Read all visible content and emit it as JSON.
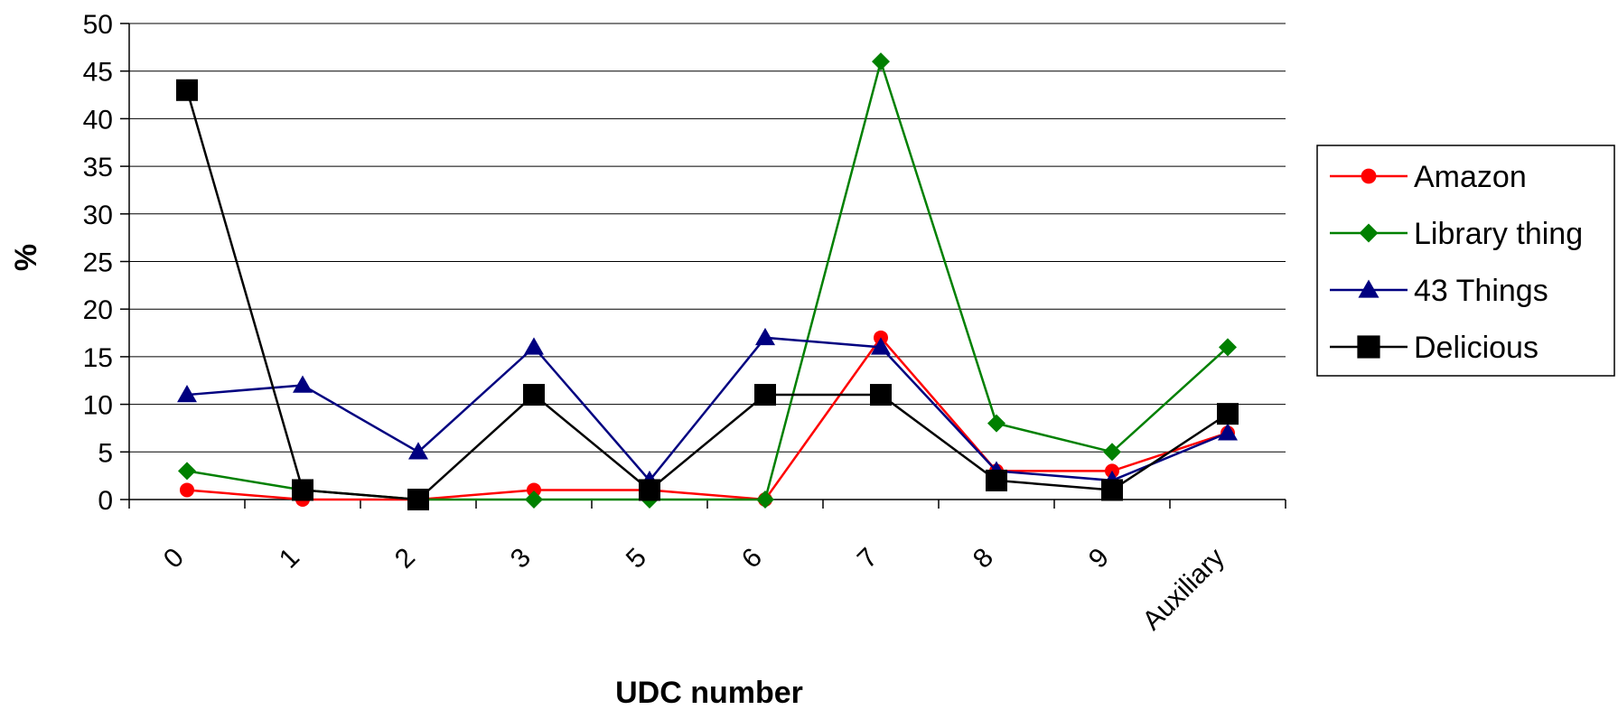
{
  "chart_data": {
    "type": "line",
    "xlabel": "UDC number",
    "ylabel": "%",
    "ylim": [
      0,
      50
    ],
    "yticks": [
      0,
      5,
      10,
      15,
      20,
      25,
      30,
      35,
      40,
      45,
      50
    ],
    "ytick_labels": [
      "0",
      "5",
      "10",
      "15",
      "20",
      "25",
      "30",
      "35",
      "40",
      "45",
      "50"
    ],
    "grid": true,
    "legend_position": "right",
    "categories": [
      "0",
      "1",
      "2",
      "3",
      "5",
      "6",
      "7",
      "8",
      "9",
      "Auxiliary"
    ],
    "series": [
      {
        "name": "Amazon",
        "color": "#ff0000",
        "marker": "circle",
        "values": [
          1,
          0,
          0,
          1,
          1,
          0,
          17,
          3,
          3,
          7
        ]
      },
      {
        "name": "Library thing",
        "color": "#008000",
        "marker": "diamond",
        "values": [
          3,
          1,
          0,
          0,
          0,
          0,
          46,
          8,
          5,
          16
        ]
      },
      {
        "name": "43 Things",
        "color": "#000080",
        "marker": "triangle",
        "values": [
          11,
          12,
          5,
          16,
          2,
          17,
          16,
          3,
          2,
          7
        ]
      },
      {
        "name": "Delicious",
        "color": "#000000",
        "marker": "square",
        "values": [
          43,
          1,
          0,
          11,
          1,
          11,
          11,
          2,
          1,
          9
        ]
      }
    ]
  }
}
